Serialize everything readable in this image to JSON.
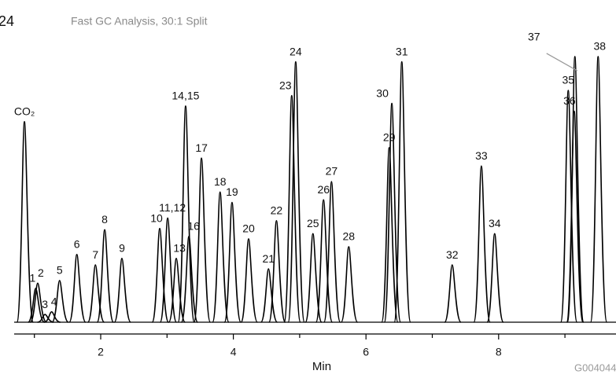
{
  "chart_data": {
    "type": "chromatogram",
    "figure_number": "24",
    "title": "Fast GC Analysis, 30:1 Split",
    "xlabel": "Min",
    "code": "G004044",
    "color": "#000000",
    "xlim": [
      0.695,
      9.77
    ],
    "xticks": [
      2,
      4,
      6,
      8
    ],
    "xminorticks": [
      1,
      3,
      5,
      7,
      9
    ],
    "ylim": [
      0,
      105
    ],
    "peaks": [
      {
        "label": "CO₂",
        "x": 0.85,
        "height": 77
      },
      {
        "label": "1",
        "x": 1.02,
        "height": 13
      },
      {
        "label": "2",
        "x": 1.05,
        "height": 15
      },
      {
        "label": "3",
        "x": 1.16,
        "height": 3
      },
      {
        "label": "4",
        "x": 1.26,
        "height": 4
      },
      {
        "label": "5",
        "x": 1.38,
        "height": 16
      },
      {
        "label": "6",
        "x": 1.64,
        "height": 26
      },
      {
        "label": "7",
        "x": 1.92,
        "height": 22
      },
      {
        "label": "8",
        "x": 2.06,
        "height": 35.5
      },
      {
        "label": "9",
        "x": 2.32,
        "height": 24.5
      },
      {
        "label": "10",
        "x": 2.89,
        "height": 36
      },
      {
        "label": "11,12",
        "x": 3.01,
        "height": 40
      },
      {
        "label": "13",
        "x": 3.14,
        "height": 24.5
      },
      {
        "label": "14,15",
        "x": 3.28,
        "height": 83
      },
      {
        "label": "16",
        "x": 3.33,
        "height": 33
      },
      {
        "label": "17",
        "x": 3.52,
        "height": 63
      },
      {
        "label": "18",
        "x": 3.8,
        "height": 50
      },
      {
        "label": "19",
        "x": 3.98,
        "height": 46
      },
      {
        "label": "20",
        "x": 4.23,
        "height": 32
      },
      {
        "label": "21",
        "x": 4.53,
        "height": 20.5
      },
      {
        "label": "22",
        "x": 4.65,
        "height": 39
      },
      {
        "label": "23",
        "x": 4.88,
        "height": 87
      },
      {
        "label": "24",
        "x": 4.94,
        "height": 100
      },
      {
        "label": "25",
        "x": 5.2,
        "height": 34
      },
      {
        "label": "26",
        "x": 5.36,
        "height": 47
      },
      {
        "label": "27",
        "x": 5.48,
        "height": 54
      },
      {
        "label": "28",
        "x": 5.74,
        "height": 29
      },
      {
        "label": "29",
        "x": 6.35,
        "height": 67
      },
      {
        "label": "30",
        "x": 6.39,
        "height": 84
      },
      {
        "label": "31",
        "x": 6.54,
        "height": 100
      },
      {
        "label": "32",
        "x": 7.3,
        "height": 22
      },
      {
        "label": "33",
        "x": 7.74,
        "height": 60
      },
      {
        "label": "34",
        "x": 7.94,
        "height": 34
      },
      {
        "label": "35",
        "x": 9.05,
        "height": 89
      },
      {
        "label": "36",
        "x": 9.14,
        "height": 81
      },
      {
        "label": "37",
        "x": 9.15,
        "height": 102
      },
      {
        "label": "38",
        "x": 9.5,
        "height": 102
      }
    ]
  }
}
